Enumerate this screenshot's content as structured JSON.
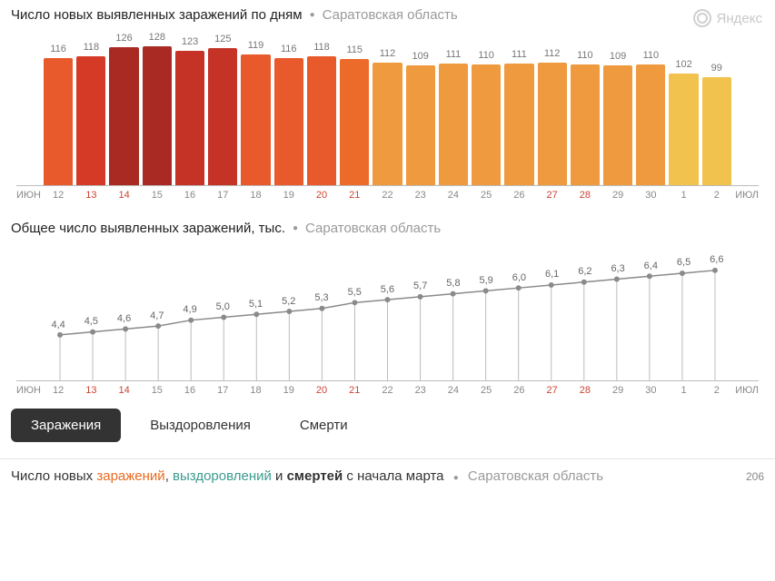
{
  "watermark": "Яндекс",
  "barChart": {
    "type": "bar",
    "title": "Число новых выявленных заражений по дням",
    "subtitle": "Саратовская область",
    "month_left": "ИЮН",
    "month_right": "ИЮЛ",
    "max_value": 140,
    "label_fontsize": 11,
    "title_fontsize": 15,
    "label_color": "#777777",
    "tick_color": "#888888",
    "weekend_tick_color": "#cc4433",
    "bars": [
      {
        "day": "12",
        "value": 116,
        "color": "#e8592b",
        "weekend": false
      },
      {
        "day": "13",
        "value": 118,
        "color": "#d53a26",
        "weekend": true
      },
      {
        "day": "14",
        "value": 126,
        "color": "#a82a23",
        "weekend": true
      },
      {
        "day": "15",
        "value": 128,
        "color": "#a82a23",
        "weekend": false
      },
      {
        "day": "16",
        "value": 123,
        "color": "#c43326",
        "weekend": false
      },
      {
        "day": "17",
        "value": 125,
        "color": "#c43326",
        "weekend": false
      },
      {
        "day": "18",
        "value": 119,
        "color": "#e8592b",
        "weekend": false
      },
      {
        "day": "19",
        "value": 116,
        "color": "#e8592b",
        "weekend": false
      },
      {
        "day": "20",
        "value": 118,
        "color": "#e8592b",
        "weekend": true
      },
      {
        "day": "21",
        "value": 115,
        "color": "#ec6a2a",
        "weekend": true
      },
      {
        "day": "22",
        "value": 112,
        "color": "#ef9a3e",
        "weekend": false
      },
      {
        "day": "23",
        "value": 109,
        "color": "#ef9a3e",
        "weekend": false
      },
      {
        "day": "24",
        "value": 111,
        "color": "#ef9a3e",
        "weekend": false
      },
      {
        "day": "25",
        "value": 110,
        "color": "#ef9a3e",
        "weekend": false
      },
      {
        "day": "26",
        "value": 111,
        "color": "#ef9a3e",
        "weekend": false
      },
      {
        "day": "27",
        "value": 112,
        "color": "#ef9a3e",
        "weekend": true
      },
      {
        "day": "28",
        "value": 110,
        "color": "#ef9a3e",
        "weekend": true
      },
      {
        "day": "29",
        "value": 109,
        "color": "#ef9a3e",
        "weekend": false
      },
      {
        "day": "30",
        "value": 110,
        "color": "#ef9a3e",
        "weekend": false
      },
      {
        "day": "1",
        "value": 102,
        "color": "#f2c24e",
        "weekend": false
      },
      {
        "day": "2",
        "value": 99,
        "color": "#f2c24e",
        "weekend": false
      }
    ]
  },
  "lineChart": {
    "type": "line",
    "title": "Общее число выявленных заражений, тыс.",
    "subtitle": "Саратовская область",
    "month_left": "ИЮН",
    "month_right": "ИЮЛ",
    "ymin": 3.0,
    "ymax": 7.0,
    "line_color": "#8a8a8a",
    "marker_color": "#8a8a8a",
    "marker_radius": 3,
    "drop_color": "#bcbcbc",
    "label_color": "#666666",
    "label_fontsize": 11,
    "points": [
      {
        "day": "12",
        "value": 4.4,
        "label": "4,4",
        "weekend": false
      },
      {
        "day": "13",
        "value": 4.5,
        "label": "4,5",
        "weekend": true
      },
      {
        "day": "14",
        "value": 4.6,
        "label": "4,6",
        "weekend": true
      },
      {
        "day": "15",
        "value": 4.7,
        "label": "4,7",
        "weekend": false
      },
      {
        "day": "16",
        "value": 4.9,
        "label": "4,9",
        "weekend": false
      },
      {
        "day": "17",
        "value": 5.0,
        "label": "5,0",
        "weekend": false
      },
      {
        "day": "18",
        "value": 5.1,
        "label": "5,1",
        "weekend": false
      },
      {
        "day": "19",
        "value": 5.2,
        "label": "5,2",
        "weekend": false
      },
      {
        "day": "20",
        "value": 5.3,
        "label": "5,3",
        "weekend": true
      },
      {
        "day": "21",
        "value": 5.5,
        "label": "5,5",
        "weekend": true
      },
      {
        "day": "22",
        "value": 5.6,
        "label": "5,6",
        "weekend": false
      },
      {
        "day": "23",
        "value": 5.7,
        "label": "5,7",
        "weekend": false
      },
      {
        "day": "24",
        "value": 5.8,
        "label": "5,8",
        "weekend": false
      },
      {
        "day": "25",
        "value": 5.9,
        "label": "5,9",
        "weekend": false
      },
      {
        "day": "26",
        "value": 6.0,
        "label": "6,0",
        "weekend": false
      },
      {
        "day": "27",
        "value": 6.1,
        "label": "6,1",
        "weekend": true
      },
      {
        "day": "28",
        "value": 6.2,
        "label": "6,2",
        "weekend": true
      },
      {
        "day": "29",
        "value": 6.3,
        "label": "6,3",
        "weekend": false
      },
      {
        "day": "30",
        "value": 6.4,
        "label": "6,4",
        "weekend": false
      },
      {
        "day": "1",
        "value": 6.5,
        "label": "6,5",
        "weekend": false
      },
      {
        "day": "2",
        "value": 6.6,
        "label": "6,6",
        "weekend": false
      }
    ]
  },
  "tabs": [
    {
      "label": "Заражения",
      "active": true
    },
    {
      "label": "Выздоровления",
      "active": false
    },
    {
      "label": "Смерти",
      "active": false
    }
  ],
  "footer": {
    "prefix": "Число новых ",
    "word1": "заражений",
    "sep1": ", ",
    "word2": "выздоровлений",
    "sep2": " и ",
    "word3": "смертей",
    "suffix": " с начала марта",
    "subtitle": "Саратовская область",
    "number": "206",
    "color1": "#e86a1f",
    "color2": "#3a9c8f",
    "color3": "#333333"
  }
}
